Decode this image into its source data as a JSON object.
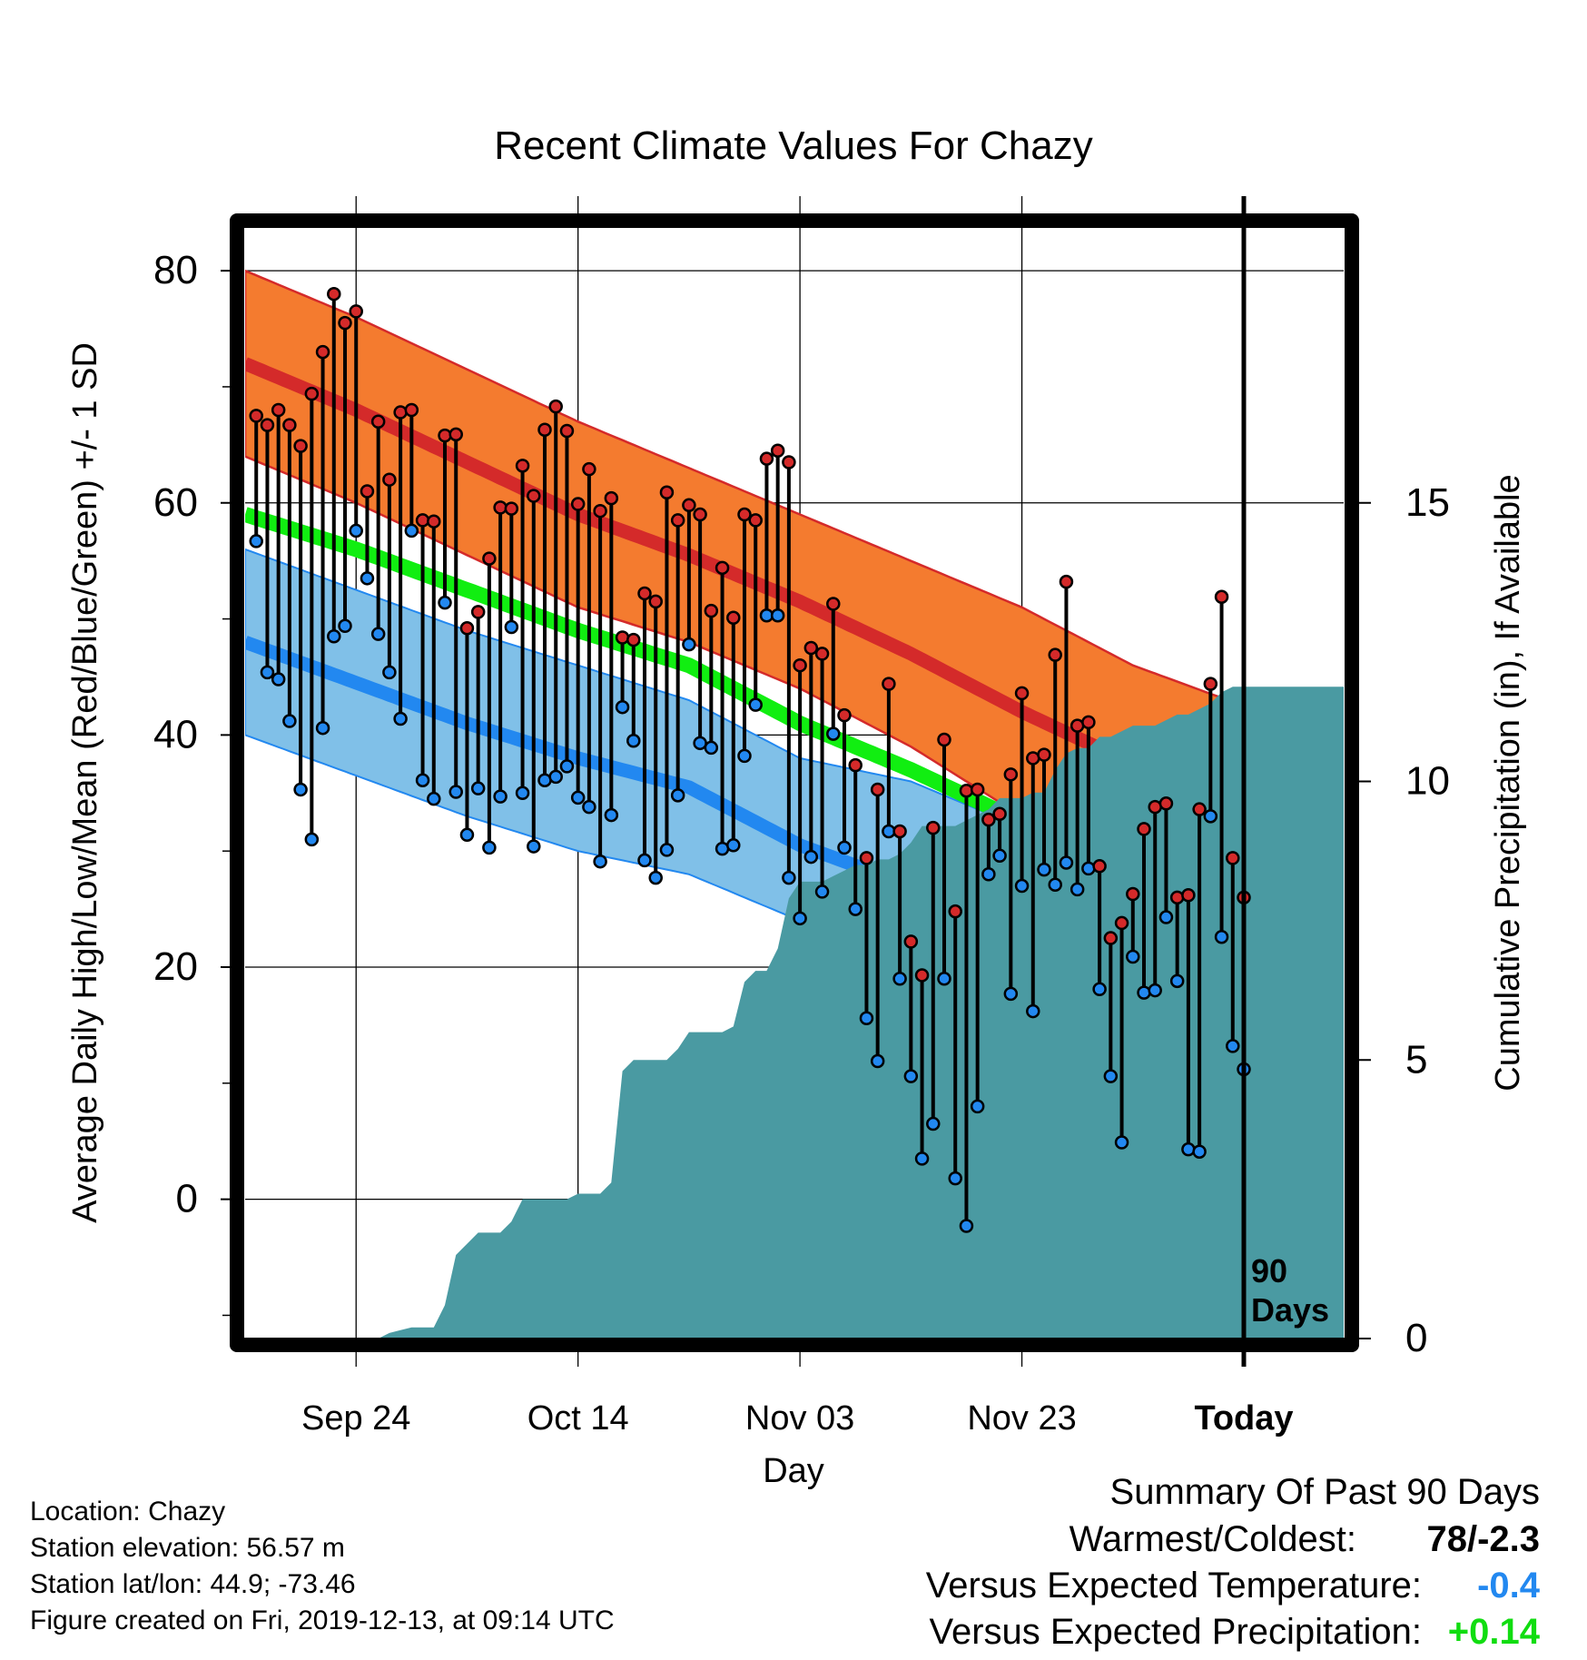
{
  "chart_data": {
    "type": "line",
    "title": "Recent Climate Values For Chazy",
    "xlabel": "Day",
    "ylabel": "Average Daily High/Low/Mean (Red/Blue/Green) +/- 1 SD",
    "y2label": "Cumulative Precipitation (in), If Available",
    "ylim": [
      -12,
      84
    ],
    "y2lim": [
      0,
      20
    ],
    "x_range_days": [
      -90,
      9
    ],
    "yticks": [
      0,
      20,
      40,
      60,
      80
    ],
    "y2ticks": [
      0,
      5,
      10,
      15
    ],
    "xticks": [
      {
        "day": -80,
        "label": "Sep 24"
      },
      {
        "day": -60,
        "label": "Oct 14"
      },
      {
        "day": -40,
        "label": "Nov 03"
      },
      {
        "day": -20,
        "label": "Nov 23"
      },
      {
        "day": 0,
        "label": "Today"
      }
    ],
    "today_marker": {
      "day": 0,
      "label_line1": "90",
      "label_line2": "Days"
    },
    "grid": true,
    "normals": {
      "days": [
        -90,
        -80,
        -70,
        -60,
        -50,
        -40,
        -30,
        -20,
        -10,
        0,
        9
      ],
      "high_mean": [
        72,
        68,
        63.5,
        59,
        55.5,
        51.5,
        47,
        42,
        37.5,
        33,
        29.5
      ],
      "high_upper": [
        80,
        76,
        71.5,
        67,
        63,
        59,
        55,
        51,
        46,
        42.5,
        40
      ],
      "high_lower": [
        64,
        60,
        55.5,
        51,
        48,
        44,
        39,
        33,
        29,
        23.5,
        19
      ],
      "low_mean": [
        48,
        44.5,
        41,
        38,
        35.5,
        30.5,
        27,
        23,
        18.5,
        14,
        10.5
      ],
      "low_upper": [
        56,
        52.5,
        49,
        46,
        43,
        38,
        36,
        32,
        29,
        26,
        24
      ],
      "low_lower": [
        40,
        36.5,
        33,
        30,
        28,
        24,
        19,
        14,
        8,
        2,
        -3
      ],
      "mean_mean": [
        59,
        56,
        52.5,
        49,
        46,
        41,
        37,
        32.5,
        28,
        23,
        17.5
      ]
    },
    "series": [
      {
        "name": "High",
        "values": [
          67.5,
          66.7,
          68,
          66.7,
          64.9,
          69.4,
          73,
          78,
          75.5,
          76.5,
          61,
          67,
          62,
          67.8,
          68,
          58.5,
          58.4,
          65.8,
          65.9,
          49.2,
          50.6,
          55.2,
          59.6,
          59.5,
          63.2,
          60.6,
          66.3,
          68.3,
          66.2,
          59.9,
          62.9,
          59.3,
          60.4,
          48.4,
          48.2,
          52.2,
          51.5,
          60.9,
          58.5,
          59.8,
          59,
          50.7,
          54.4,
          50.1,
          59,
          58.5,
          63.8,
          64.5,
          63.5,
          46,
          47.5,
          47,
          51.3,
          41.7,
          37.4,
          29.4,
          35.3,
          44.4,
          31.7,
          22.2,
          19.3,
          32,
          39.6,
          24.8,
          35.2,
          35.3,
          32.7,
          33.2,
          36.6,
          43.6,
          38,
          38.3,
          46.9,
          53.2,
          40.8,
          41.1,
          28.7,
          22.5,
          23.8,
          26.3,
          31.9,
          33.8,
          34.1,
          26,
          26.2,
          33.6,
          44.4,
          51.9,
          29.4,
          26
        ]
      },
      {
        "name": "Low",
        "values": [
          56.7,
          45.4,
          44.8,
          41.2,
          35.3,
          31,
          40.6,
          48.5,
          49.4,
          57.6,
          53.5,
          48.7,
          45.4,
          41.4,
          57.6,
          36.1,
          34.5,
          51.4,
          35.1,
          31.4,
          35.4,
          30.3,
          34.7,
          49.3,
          35,
          30.4,
          36.1,
          36.4,
          37.3,
          34.6,
          33.8,
          29.1,
          33.1,
          42.4,
          39.5,
          29.2,
          27.7,
          30.1,
          34.8,
          47.8,
          39.3,
          38.9,
          30.2,
          30.5,
          38.2,
          42.6,
          50.3,
          50.3,
          27.7,
          24.2,
          29.5,
          26.5,
          40.1,
          30.3,
          25,
          15.6,
          11.9,
          31.7,
          19,
          10.6,
          3.5,
          6.5,
          19,
          1.8,
          -2.3,
          8,
          28,
          29.6,
          17.7,
          27,
          16.2,
          28.4,
          27.1,
          29,
          26.7,
          28.5,
          18.1,
          10.6,
          4.9,
          20.9,
          17.8,
          18,
          24.3,
          18.8,
          4.3,
          4.1,
          33,
          22.6,
          13.2,
          11.2
        ]
      },
      {
        "name": "Cumulative Precipitation",
        "values": [
          0,
          0,
          0,
          0,
          0,
          0,
          0,
          0,
          0,
          0,
          0,
          0,
          0.1,
          0.15,
          0.2,
          0.2,
          0.2,
          0.6,
          1.5,
          1.7,
          1.9,
          1.9,
          1.9,
          2.1,
          2.5,
          2.5,
          2.5,
          2.5,
          2.5,
          2.6,
          2.6,
          2.6,
          2.8,
          4.8,
          5,
          5,
          5,
          5,
          5.2,
          5.5,
          5.5,
          5.5,
          5.5,
          5.6,
          6.4,
          6.6,
          6.6,
          7,
          7.9,
          8.2,
          8.2,
          8.2,
          8.3,
          8.4,
          8.5,
          8.5,
          8.6,
          8.6,
          8.7,
          8.9,
          9.2,
          9.2,
          9.2,
          9.2,
          9.3,
          9.4,
          9.5,
          9.7,
          9.7,
          9.7,
          9.8,
          9.8,
          10.2,
          10.5,
          10.6,
          10.6,
          10.8,
          10.8,
          10.9,
          11,
          11,
          11,
          11.1,
          11.2,
          11.2,
          11.3,
          11.4,
          11.6,
          11.7,
          11.7
        ]
      }
    ],
    "colors": {
      "high_band": "#f47b2f",
      "high_mean": "#d42a2a",
      "low_band": "#80c0e8",
      "low_mean": "#2288f0",
      "overlap": "#951b1b",
      "mean_line": "#11ee11",
      "precip": "#4a9aa2",
      "high_dot": "#d42a2a",
      "low_dot": "#2288f0"
    }
  },
  "info": {
    "location": "Location: Chazy",
    "elevation": "Station elevation: 56.57 m",
    "latlon": "Station lat/lon: 44.9; -73.46",
    "created": "Figure created on Fri, 2019-12-13, at 09:14 UTC"
  },
  "summary": {
    "heading": "Summary Of Past 90 Days",
    "warm_cold_label": "Warmest/Coldest:",
    "warm_cold_value": "78/-2.3",
    "temp_label": "Versus Expected Temperature:",
    "temp_value": "-0.4",
    "temp_color": "#2288f0",
    "precip_label": "Versus Expected Precipitation:",
    "precip_value": "+0.14",
    "precip_color": "#11dd11"
  }
}
